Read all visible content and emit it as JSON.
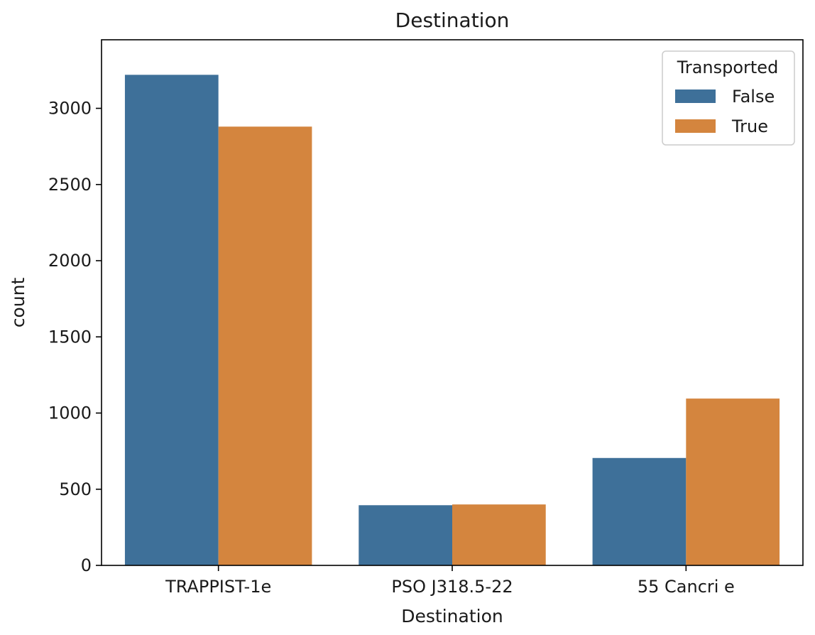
{
  "chart_data": {
    "type": "bar",
    "title": "Destination",
    "xlabel": "Destination",
    "ylabel": "count",
    "categories": [
      "TRAPPIST-1e",
      "PSO J318.5-22",
      "55 Cancri e"
    ],
    "series": [
      {
        "name": "False",
        "values": [
          3220,
          395,
          705
        ],
        "color": "#3e7099"
      },
      {
        "name": "True",
        "values": [
          2880,
          400,
          1095
        ],
        "color": "#d4853e"
      }
    ],
    "ylim": [
      0,
      3450
    ],
    "yticks": [
      0,
      500,
      1000,
      1500,
      2000,
      2500,
      3000
    ],
    "legend": {
      "title": "Transported",
      "position": "top-right"
    },
    "grid": false
  }
}
